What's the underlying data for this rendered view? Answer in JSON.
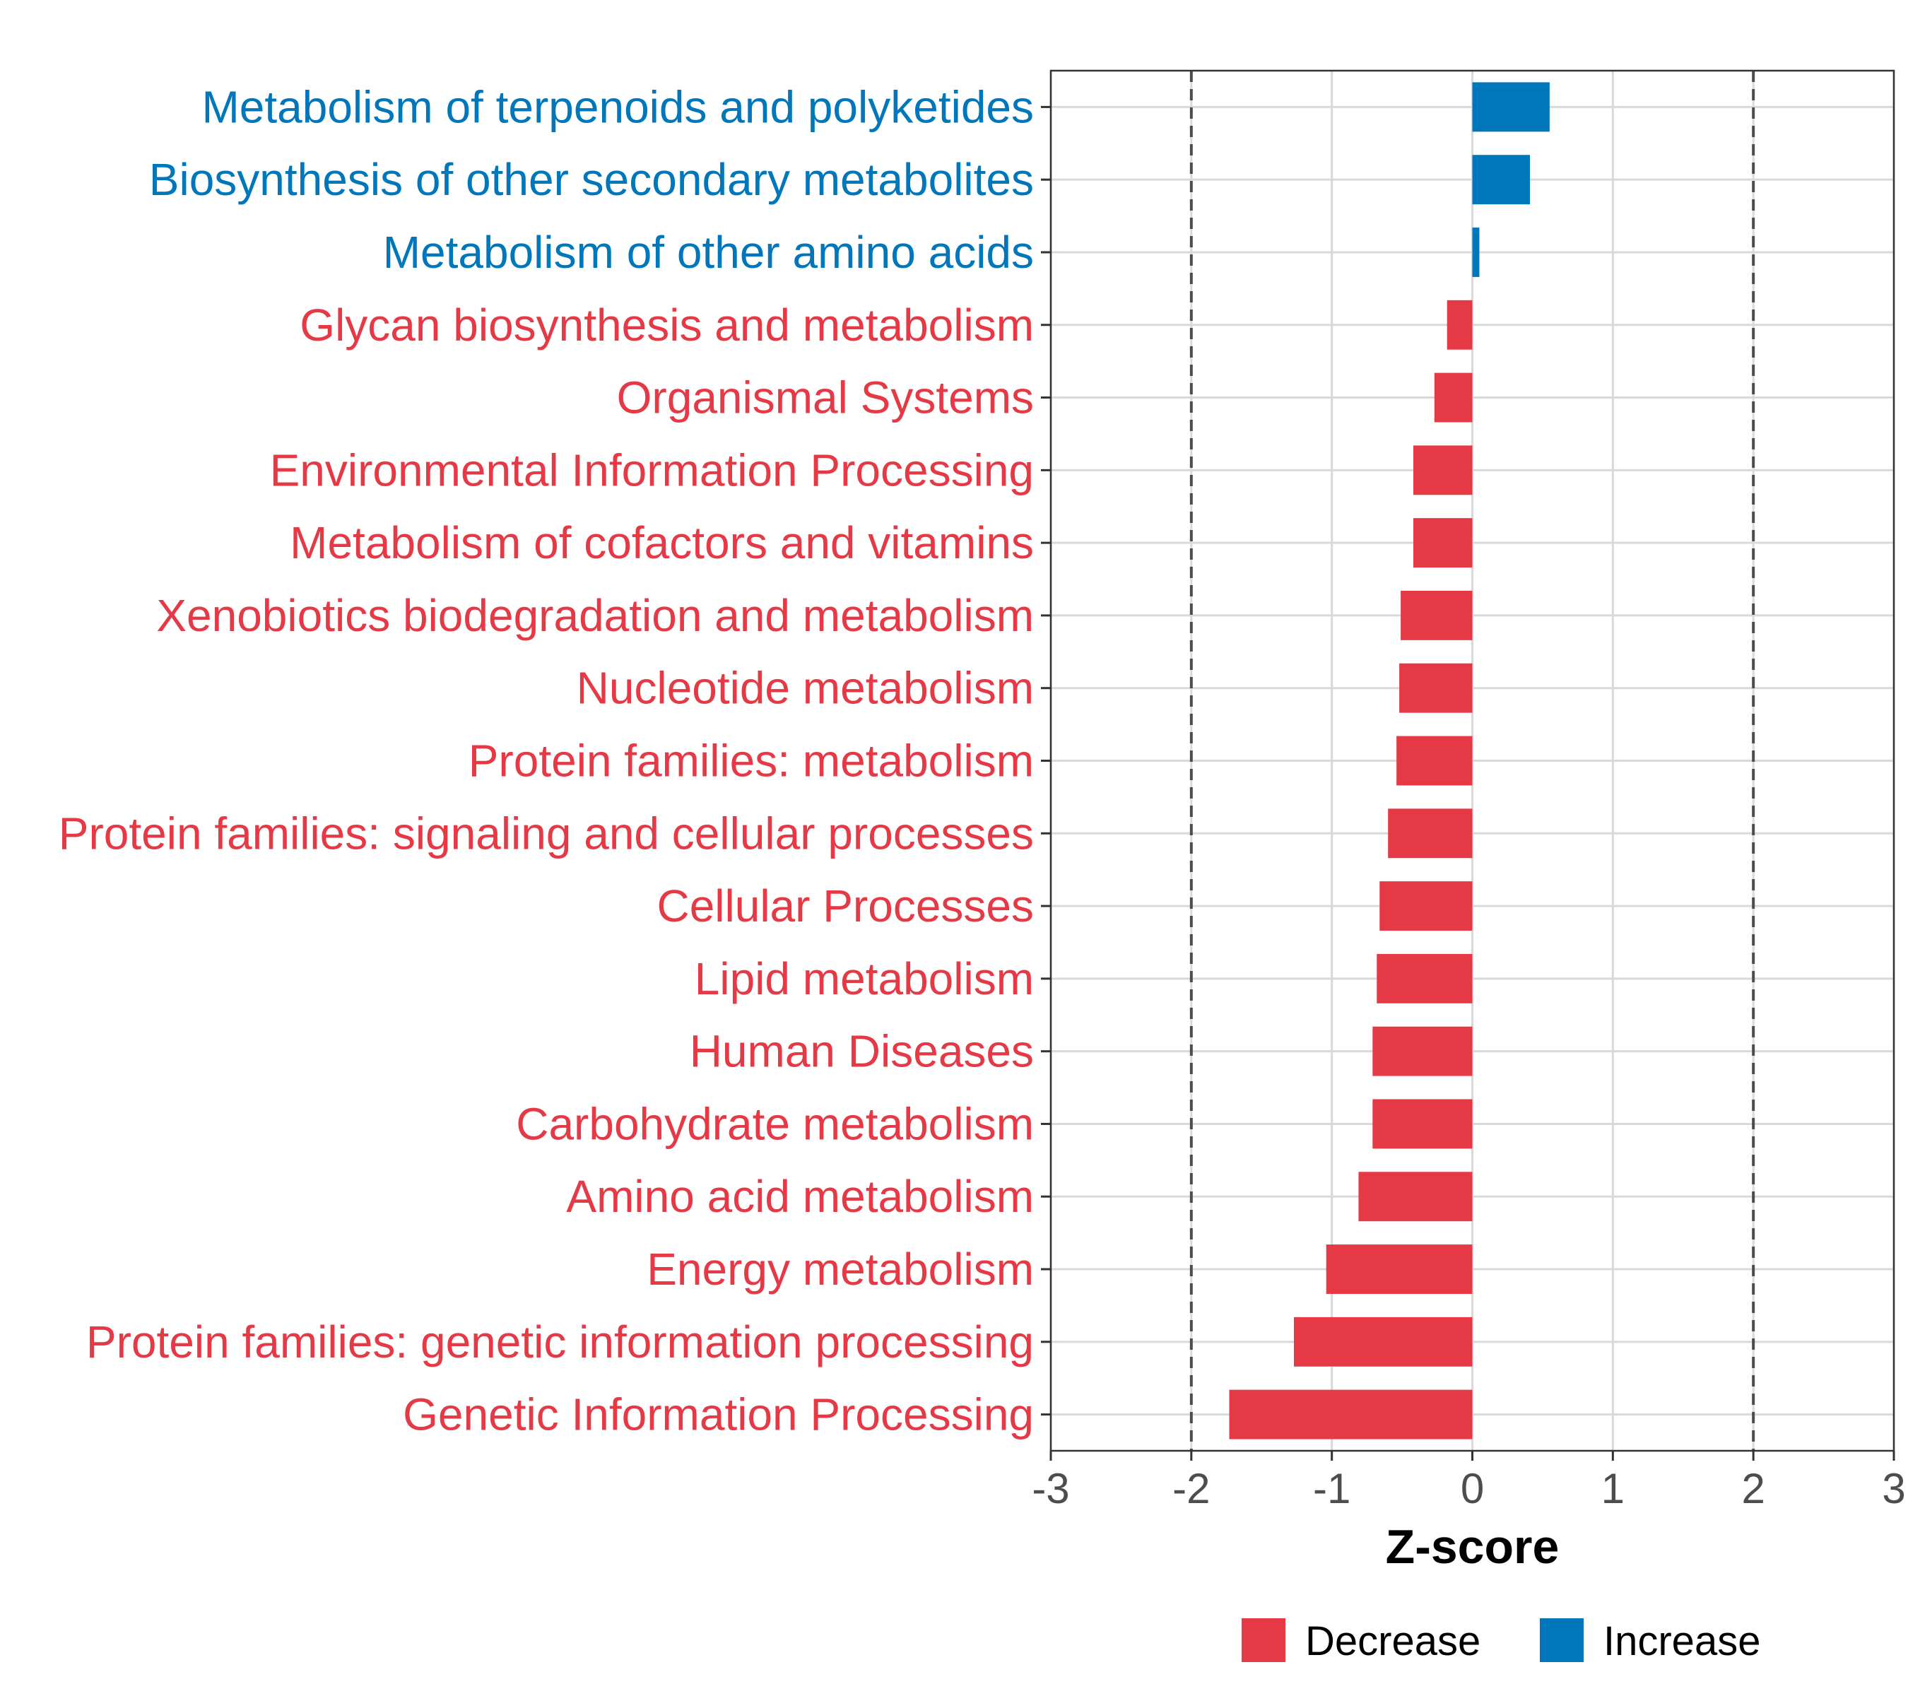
{
  "chart_data": {
    "type": "bar",
    "orientation": "horizontal",
    "title": "",
    "xlabel": "Z-score",
    "ylabel": "",
    "xlim": [
      -3,
      3
    ],
    "xticks": [
      "-3",
      "-2",
      "-1",
      "0",
      "1",
      "2",
      "3"
    ],
    "reference_lines": [
      -2,
      2
    ],
    "grid": true,
    "categories": [
      "Metabolism of terpenoids and polyketides",
      "Biosynthesis of other secondary metabolites",
      "Metabolism of other amino acids",
      "Glycan biosynthesis and metabolism",
      "Organismal Systems",
      "Environmental Information Processing",
      "Metabolism of cofactors and vitamins",
      "Xenobiotics biodegradation and metabolism",
      "Nucleotide metabolism",
      "Protein families: metabolism",
      "Protein families: signaling and cellular processes",
      "Cellular Processes",
      "Lipid metabolism",
      "Human Diseases",
      "Carbohydrate metabolism",
      "Amino acid metabolism",
      "Energy metabolism",
      "Protein families: genetic information processing",
      "Genetic Information Processing"
    ],
    "values": [
      0.55,
      0.41,
      0.05,
      -0.18,
      -0.27,
      -0.42,
      -0.42,
      -0.51,
      -0.52,
      -0.54,
      -0.6,
      -0.66,
      -0.68,
      -0.71,
      -0.71,
      -0.81,
      -1.04,
      -1.27,
      -1.73
    ],
    "legend": {
      "position": "bottom",
      "entries": [
        {
          "label": "Decrease",
          "color": "#e63946"
        },
        {
          "label": "Increase",
          "color": "#0077bb"
        }
      ]
    },
    "colors": {
      "decrease": "#e63946",
      "increase": "#0077bb"
    }
  }
}
